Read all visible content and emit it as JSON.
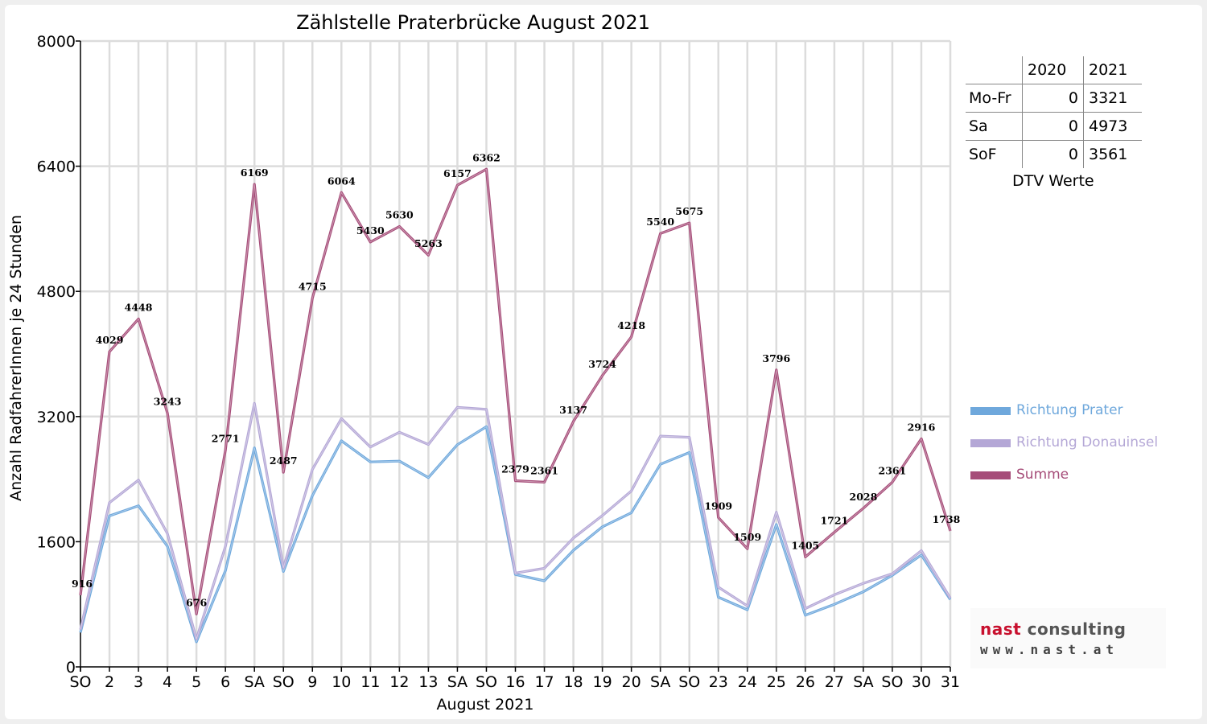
{
  "chart_data": {
    "type": "line",
    "title": "Zählstelle Praterbrücke August 2021",
    "xlabel": "August 2021",
    "ylabel": "Anzahl RadfahrerInnen je 24 Stunden",
    "ylim": [
      0,
      8000
    ],
    "yticks": [
      0,
      1600,
      3200,
      4800,
      6400,
      8000
    ],
    "grid": true,
    "legend_position": "right",
    "categories": [
      "SO",
      "2",
      "3",
      "4",
      "5",
      "6",
      "SA",
      "SO",
      "9",
      "10",
      "11",
      "12",
      "13",
      "SA",
      "SO",
      "16",
      "17",
      "18",
      "19",
      "20",
      "SA",
      "SO",
      "23",
      "24",
      "25",
      "26",
      "27",
      "SA",
      "SO",
      "30",
      "31"
    ],
    "category_colors": [
      "#ff0000",
      "#000000",
      "#000000",
      "#000000",
      "#000000",
      "#000000",
      "#000000",
      "#ff0000",
      "#000000",
      "#000000",
      "#000000",
      "#000000",
      "#000000",
      "#000000",
      "#ff0000",
      "#000000",
      "#000000",
      "#000000",
      "#000000",
      "#000000",
      "#000000",
      "#ff0000",
      "#000000",
      "#000000",
      "#000000",
      "#000000",
      "#000000",
      "#000000",
      "#ff0000",
      "#000000",
      "#000000"
    ],
    "series": [
      {
        "name": "Richtung Prater",
        "color": "#6fa8dc",
        "values": [
          440,
          1930,
          2060,
          1540,
          320,
          1230,
          2800,
          1220,
          2190,
          2890,
          2620,
          2630,
          2420,
          2840,
          3070,
          1180,
          1100,
          1490,
          1790,
          1970,
          2590,
          2740,
          890,
          730,
          1820,
          660,
          800,
          960,
          1170,
          1430,
          860
        ]
      },
      {
        "name": "Richtung Donauinsel",
        "color": "#b4a7d6",
        "values": [
          476,
          2099,
          2388,
          1703,
          356,
          1541,
          3369,
          1267,
          2525,
          3174,
          2810,
          3000,
          2843,
          3317,
          3292,
          1199,
          1261,
          1647,
          1934,
          2248,
          2950,
          2935,
          1019,
          779,
          1976,
          745,
          921,
          1068,
          1191,
          1486,
          878
        ]
      },
      {
        "name": "Summe",
        "color": "#a64d79",
        "values": [
          916,
          4029,
          4448,
          3243,
          676,
          2771,
          6169,
          2487,
          4715,
          6064,
          5430,
          5630,
          5263,
          6157,
          6362,
          2379,
          2361,
          3137,
          3724,
          4218,
          5540,
          5675,
          1909,
          1509,
          3796,
          1405,
          1721,
          2028,
          2361,
          2916,
          1738
        ]
      }
    ],
    "data_labels": [
      "916",
      "4029",
      "4448",
      "3243",
      "676",
      "2771",
      "6169",
      "2487",
      "4715",
      "6064",
      "5430",
      "5630",
      "5263",
      "6157",
      "6362",
      "2379",
      "2361",
      "3137",
      "3724",
      "4218",
      "5540",
      "5675",
      "1909",
      "1509",
      "3796",
      "1405",
      "1721",
      "2028",
      "2361",
      "2916",
      "1738"
    ]
  },
  "dtv_table": {
    "headers": [
      "2020",
      "2021"
    ],
    "rows": [
      {
        "label": "Mo-Fr",
        "v2020": "0",
        "v2021": "3321"
      },
      {
        "label": "Sa",
        "v2020": "0",
        "v2021": "4973"
      },
      {
        "label": "SoF",
        "v2020": "0",
        "v2021": "3561"
      }
    ],
    "caption": "DTV Werte"
  },
  "logo": {
    "word1": "nast",
    "word2": "consulting",
    "url": "www.nast.at",
    "color1": "#c8102e",
    "color2": "#555555"
  }
}
